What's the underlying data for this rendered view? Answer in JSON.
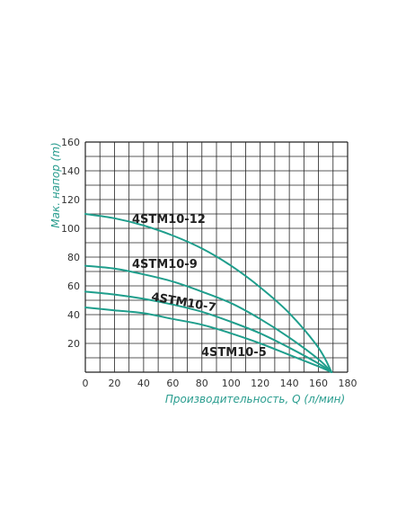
{
  "colors": {
    "curve": "#1f9e8c",
    "axis_label": "#2a9d8f",
    "grid": "#222222",
    "tick": "#333333"
  },
  "chart_data": {
    "type": "line",
    "title": "",
    "xlabel": "Производительность, Q (л/мин)",
    "ylabel": "Мак. напор (m)",
    "xlim": [
      0,
      180
    ],
    "ylim": [
      0,
      160
    ],
    "xticks": [
      0,
      20,
      40,
      60,
      80,
      100,
      120,
      140,
      160,
      180
    ],
    "yticks": [
      20,
      40,
      60,
      80,
      100,
      120,
      140,
      160
    ],
    "grid": true,
    "series": [
      {
        "name": "4STM10-12",
        "x": [
          0,
          20,
          40,
          60,
          80,
          100,
          120,
          140,
          160,
          169
        ],
        "y": [
          110,
          107,
          102,
          95,
          86,
          74,
          59,
          41,
          17,
          0
        ]
      },
      {
        "name": "4STM10-9",
        "x": [
          0,
          20,
          40,
          60,
          80,
          100,
          120,
          140,
          160,
          169
        ],
        "y": [
          74,
          72,
          68,
          63,
          56,
          48,
          37,
          24,
          9,
          0
        ]
      },
      {
        "name": "4STM10-7",
        "x": [
          0,
          20,
          40,
          60,
          80,
          100,
          120,
          140,
          160,
          169
        ],
        "y": [
          56,
          54,
          51,
          47,
          42,
          35,
          27,
          17,
          6,
          0
        ]
      },
      {
        "name": "4STM10-5",
        "x": [
          0,
          20,
          40,
          60,
          80,
          100,
          120,
          140,
          160,
          169
        ],
        "y": [
          45,
          43,
          41,
          37,
          33,
          27,
          20,
          12,
          4,
          0
        ]
      }
    ]
  }
}
